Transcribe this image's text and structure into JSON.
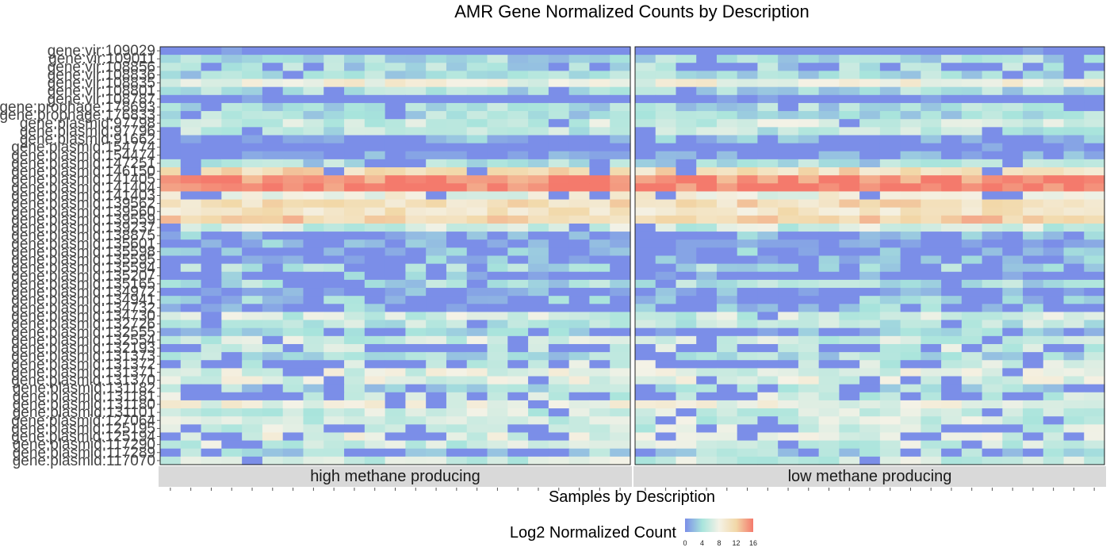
{
  "chart_data": {
    "type": "heatmap",
    "title": "AMR Gene Normalized Counts by Description",
    "xlabel": "Samples by Description",
    "ylabel": "",
    "genes": [
      "gene:vir:109029",
      "gene:vir:109011",
      "gene:vir:108856",
      "gene:vir:108836",
      "gene:vir:108835",
      "gene:vir:108801",
      "gene:vir:108787",
      "gene:prophage:178693",
      "gene:prophage:176833",
      "gene:plasmid:97798",
      "gene:plasmid:97796",
      "gene:plasmid:91662",
      "gene:plasmid:154774",
      "gene:plasmid:154474",
      "gene:plasmid:147251",
      "gene:plasmid:146150",
      "gene:plasmid:141405",
      "gene:plasmid:141404",
      "gene:plasmid:141403",
      "gene:plasmid:139562",
      "gene:plasmid:139560",
      "gene:plasmid:139559",
      "gene:plasmid:139237",
      "gene:plasmid:138875",
      "gene:plasmid:135601",
      "gene:plasmid:135598",
      "gene:plasmid:135595",
      "gene:plasmid:135594",
      "gene:plasmid:135207",
      "gene:plasmid:135165",
      "gene:plasmid:134972",
      "gene:plasmid:134941",
      "gene:plasmid:134732",
      "gene:plasmid:134730",
      "gene:plasmid:132726",
      "gene:plasmid:132555",
      "gene:plasmid:132554",
      "gene:plasmid:132193",
      "gene:plasmid:131373",
      "gene:plasmid:131372",
      "gene:plasmid:131371",
      "gene:plasmid:131370",
      "gene:plasmid:131182",
      "gene:plasmid:131181",
      "gene:plasmid:131180",
      "gene:plasmid:131101",
      "gene:plasmid:127064",
      "gene:plasmid:125195",
      "gene:plasmid:125194",
      "gene:plasmid:117290",
      "gene:plasmid:117289",
      "gene:plasmid:117070"
    ],
    "panels": [
      "high methane producing",
      "low methane producing"
    ],
    "samples_per_panel": 23,
    "legend": {
      "title": "Log2 Normalized Count",
      "ticks": [
        0,
        4,
        8,
        12,
        16
      ],
      "colors": [
        "#7b8ee8",
        "#a8e4dc",
        "#f4f2e6",
        "#f2d8a8",
        "#f47a6c"
      ],
      "position": "bottom"
    },
    "row_base_log2": [
      0,
      4,
      4,
      4,
      8,
      4,
      0,
      4,
      4,
      6,
      5,
      2,
      0,
      1,
      4,
      11,
      15,
      16,
      8,
      11,
      10,
      12,
      6,
      2,
      2,
      2,
      2,
      4,
      2,
      4,
      1,
      3,
      3,
      6,
      5,
      3,
      6,
      6,
      4,
      6,
      7,
      7,
      4,
      6,
      8,
      6,
      6,
      6,
      7,
      6,
      4,
      6
    ],
    "row_zero_fraction": [
      0.95,
      0.1,
      0.35,
      0.1,
      0.0,
      0.05,
      0.9,
      0.1,
      0.05,
      0.05,
      0.1,
      0.6,
      0.95,
      0.55,
      0.2,
      0.3,
      0.0,
      0.0,
      0.25,
      0.0,
      0.0,
      0.0,
      0.2,
      0.6,
      0.5,
      0.45,
      0.45,
      0.4,
      0.65,
      0.1,
      0.55,
      0.45,
      0.5,
      0.1,
      0.1,
      0.45,
      0.15,
      0.55,
      0.1,
      0.55,
      0.15,
      0.1,
      0.25,
      0.55,
      0.1,
      0.1,
      0.1,
      0.3,
      0.3,
      0.1,
      0.35,
      0.05
    ]
  }
}
